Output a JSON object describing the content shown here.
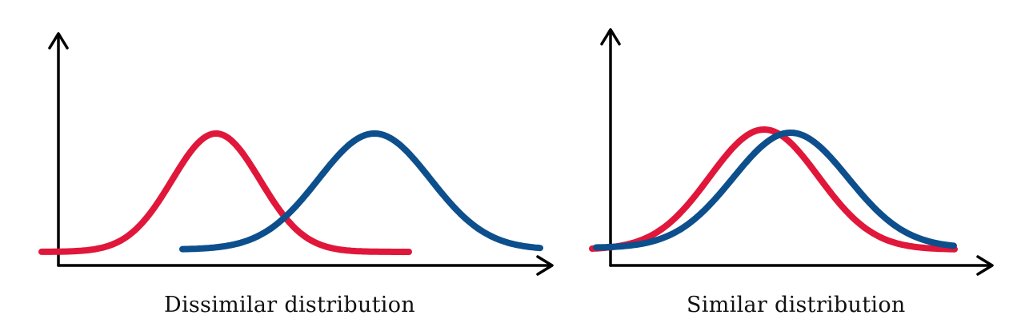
{
  "colors": {
    "red_curve": "#e0173a",
    "blue_curve": "#0d4f8c",
    "axis": "#000000"
  },
  "panels": [
    {
      "caption": "Dissimilar distribution",
      "curves": [
        {
          "color_key": "red_curve",
          "peak_x": 270,
          "peak_y": 167,
          "base_y": 315,
          "sigma": 55,
          "x_start": 52,
          "x_end": 512
        },
        {
          "color_key": "blue_curve",
          "peak_x": 468,
          "peak_y": 167,
          "base_y": 312,
          "sigma": 70,
          "x_start": 228,
          "x_end": 675
        }
      ]
    },
    {
      "caption": "Similar distribution",
      "curves": [
        {
          "color_key": "red_curve",
          "peak_x": 255,
          "peak_y": 162,
          "base_y": 312,
          "sigma": 68,
          "x_start": 40,
          "x_end": 495
        },
        {
          "color_key": "blue_curve",
          "peak_x": 288,
          "peak_y": 166,
          "base_y": 310,
          "sigma": 72,
          "x_start": 45,
          "x_end": 492
        }
      ]
    }
  ]
}
